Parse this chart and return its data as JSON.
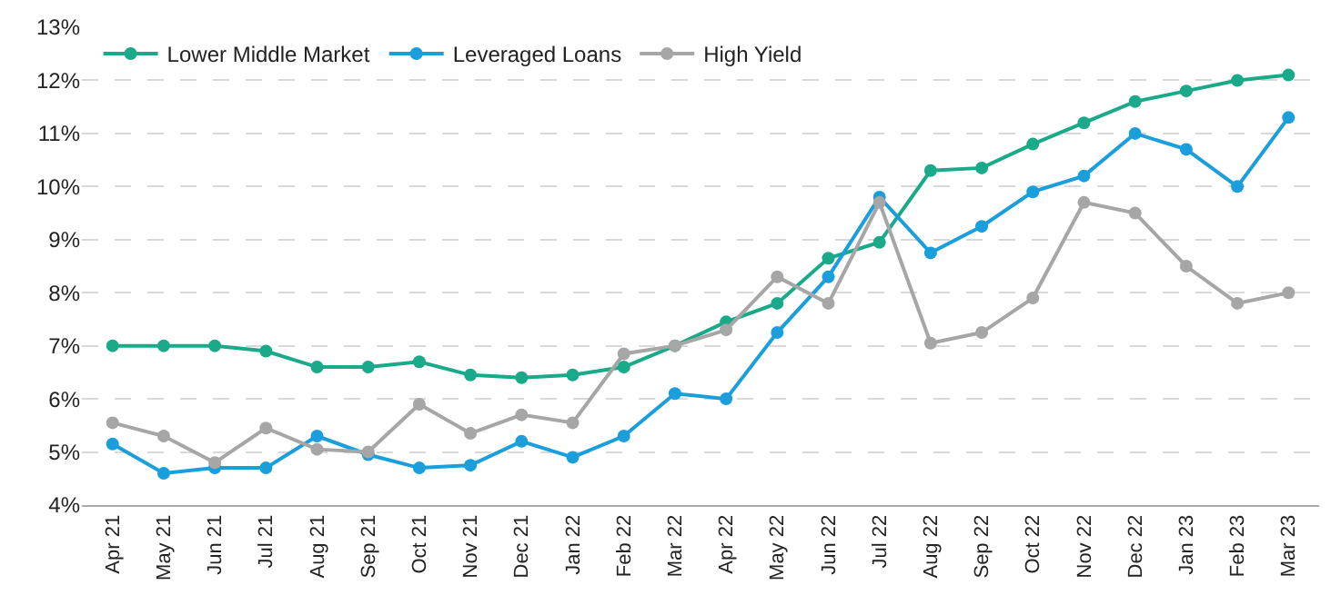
{
  "chart_data": {
    "type": "line",
    "categories": [
      "Apr 21",
      "May 21",
      "Jun 21",
      "Jul 21",
      "Aug 21",
      "Sep 21",
      "Oct 21",
      "Nov 21",
      "Dec 21",
      "Jan 22",
      "Feb 22",
      "Mar 22",
      "Apr 22",
      "May 22",
      "Jun 22",
      "Jul 22",
      "Aug 22",
      "Sep 22",
      "Oct 22",
      "Nov 22",
      "Dec 22",
      "Jan 23",
      "Feb 23",
      "Mar 23"
    ],
    "series": [
      {
        "name": "Lower Middle Market",
        "color": "#1aaa8a",
        "values": [
          7.0,
          7.0,
          7.0,
          6.9,
          6.6,
          6.6,
          6.7,
          6.45,
          6.4,
          6.45,
          6.6,
          7.0,
          7.45,
          7.8,
          8.65,
          8.95,
          10.3,
          10.35,
          10.8,
          11.2,
          11.6,
          11.8,
          12.0,
          12.1
        ]
      },
      {
        "name": "Leveraged Loans",
        "color": "#1a9fdc",
        "values": [
          5.15,
          4.6,
          4.7,
          4.7,
          5.3,
          4.95,
          4.7,
          4.75,
          5.2,
          4.9,
          5.3,
          6.1,
          6.0,
          7.25,
          8.3,
          9.8,
          8.75,
          9.25,
          9.9,
          10.2,
          11.0,
          10.7,
          10.0,
          11.3
        ]
      },
      {
        "name": "High Yield",
        "color": "#a6a6a6",
        "values": [
          5.55,
          5.3,
          4.8,
          5.45,
          5.05,
          5.0,
          5.9,
          5.35,
          5.7,
          5.55,
          6.85,
          7.0,
          7.3,
          8.3,
          7.8,
          9.7,
          7.05,
          7.25,
          7.9,
          9.7,
          9.5,
          8.5,
          7.8,
          8.0
        ]
      }
    ],
    "ylim": [
      4,
      13
    ],
    "yticks": [
      {
        "value": 4,
        "label": "4%"
      },
      {
        "value": 5,
        "label": "5%"
      },
      {
        "value": 6,
        "label": "6%"
      },
      {
        "value": 7,
        "label": "7%"
      },
      {
        "value": 8,
        "label": "8%"
      },
      {
        "value": 9,
        "label": "9%"
      },
      {
        "value": 10,
        "label": "10%"
      },
      {
        "value": 11,
        "label": "11%"
      },
      {
        "value": 12,
        "label": "12%"
      },
      {
        "value": 13,
        "label": "13%"
      }
    ],
    "grid": "y",
    "legend": "top left",
    "marker": "circle",
    "line_style": "solid"
  }
}
